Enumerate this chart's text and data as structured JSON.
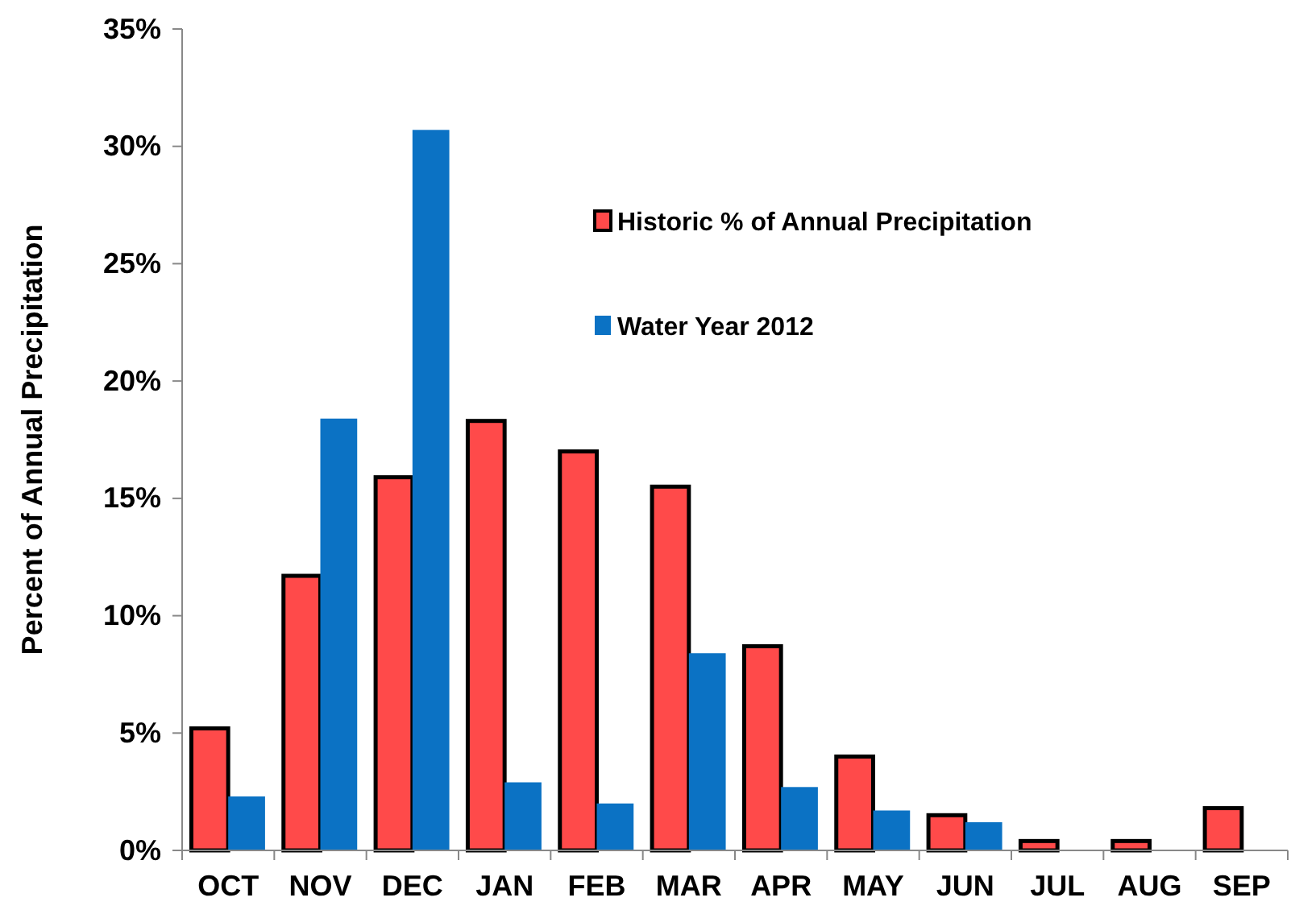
{
  "chart_data": {
    "type": "bar",
    "ylabel": "Percent of Annual Precipitation",
    "categories": [
      "OCT",
      "NOV",
      "DEC",
      "JAN",
      "FEB",
      "MAR",
      "APR",
      "MAY",
      "JUN",
      "JUL",
      "AUG",
      "SEP"
    ],
    "series": [
      {
        "name": "Historic % of Annual Precipitation",
        "color": "#ff4a4a",
        "values": [
          5.2,
          11.7,
          15.9,
          18.3,
          17.0,
          15.5,
          8.7,
          4.0,
          1.5,
          0.4,
          0.4,
          1.8
        ]
      },
      {
        "name": "Water Year 2012",
        "color": "#0b72c4",
        "values": [
          2.3,
          18.4,
          30.7,
          2.9,
          2.0,
          8.4,
          2.7,
          1.7,
          1.2,
          null,
          null,
          null
        ]
      }
    ],
    "ylim": [
      0,
      35
    ],
    "yticks": [
      {
        "value": 0,
        "label": "0%"
      },
      {
        "value": 5,
        "label": "5%"
      },
      {
        "value": 10,
        "label": "10%"
      },
      {
        "value": 15,
        "label": "15%"
      },
      {
        "value": 20,
        "label": "20%"
      },
      {
        "value": 25,
        "label": "25%"
      },
      {
        "value": 30,
        "label": "30%"
      },
      {
        "value": 35,
        "label": "35%"
      }
    ],
    "legend": "top right",
    "grid": false
  }
}
